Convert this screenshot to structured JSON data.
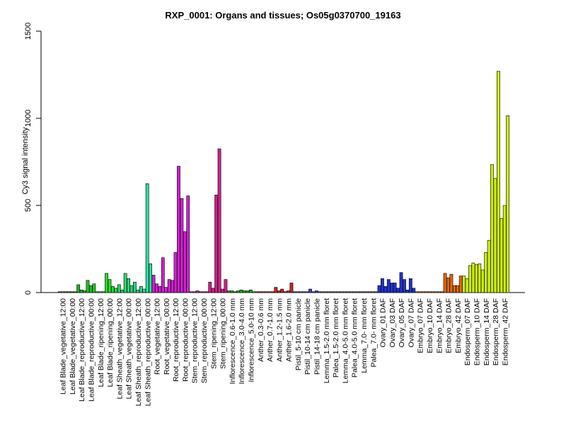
{
  "chart_data": {
    "type": "bar",
    "title": "RXP_0001: Organs and tissues; Os05g0370700_19163",
    "xlabel": "",
    "ylabel": "Cy3 signal intensity",
    "ylim": [
      0,
      1500
    ],
    "yticks": [
      "0",
      "500",
      "1000",
      "1500"
    ],
    "grid": false,
    "groups": [
      {
        "label": "Leaf Blade_vegetative_12:00",
        "color": "#1a8a1a",
        "values": [
          5,
          5,
          5
        ]
      },
      {
        "label": "Leaf Blade_vegetative_00:00",
        "color": "#1a8a1a",
        "values": [
          5,
          5,
          5
        ]
      },
      {
        "label": "Leaf Blade_reproductive_12:00",
        "color": "#22b022",
        "values": [
          45,
          15,
          10
        ]
      },
      {
        "label": "Leaf Blade_reproductive_00:00",
        "color": "#22c022",
        "values": [
          70,
          40,
          50
        ]
      },
      {
        "label": "Leaf Blade_ripening_12:00",
        "color": "#28d028",
        "values": [
          5,
          5,
          5
        ]
      },
      {
        "label": "Leaf Blade_ripening_00:00",
        "color": "#2ed62e",
        "values": [
          110,
          75,
          35
        ]
      },
      {
        "label": "Leaf Sheath_vegetative_12:00",
        "color": "#30d060",
        "values": [
          25,
          45,
          15
        ]
      },
      {
        "label": "Leaf Sheath_vegetative_00:00",
        "color": "#30d070",
        "values": [
          110,
          80,
          40
        ]
      },
      {
        "label": "Leaf Sheath_reproductive_12:00",
        "color": "#30d088",
        "values": [
          60,
          15,
          35
        ]
      },
      {
        "label": "Leaf Sheath_reproductive_00:00",
        "color": "#30d8a0",
        "values": [
          20,
          625,
          165
        ]
      },
      {
        "label": "Root_vegetative_12:00",
        "color": "#cc22cc",
        "values": [
          100,
          50,
          35
        ]
      },
      {
        "label": "Root_vegetative_00:00",
        "color": "#cc22cc",
        "values": [
          200,
          30,
          75
        ]
      },
      {
        "label": "Root_reproductive_12:00",
        "color": "#cc22cc",
        "values": [
          70,
          230,
          725
        ]
      },
      {
        "label": "Root_reproductive_00:00",
        "color": "#cc22cc",
        "values": [
          540,
          350,
          555
        ]
      },
      {
        "label": "Stem_reproductive_12:00",
        "color": "#cc2288",
        "values": [
          5,
          5,
          10
        ]
      },
      {
        "label": "Stem_reproductive_00:00",
        "color": "#cc2288",
        "values": [
          5,
          5,
          5
        ]
      },
      {
        "label": "Stem_ripening_12:00",
        "color": "#cc2288",
        "values": [
          60,
          25,
          560
        ]
      },
      {
        "label": "Stem_ripening_00:00",
        "color": "#cc2288",
        "values": [
          825,
          20,
          75
        ]
      },
      {
        "label": "Inflorescence_0.6-1.0 mm",
        "color": "#22aa22",
        "values": [
          10,
          10,
          5
        ]
      },
      {
        "label": "Inflorescence_3.0-4.0 mm",
        "color": "#22aa22",
        "values": [
          10,
          15,
          10
        ]
      },
      {
        "label": "Inflorescence_5.0-10 mm",
        "color": "#22aa22",
        "values": [
          10,
          15,
          5
        ]
      },
      {
        "label": "Anther_0.3-0.6 mm",
        "color": "#cc2222",
        "values": [
          5,
          5,
          5
        ]
      },
      {
        "label": "Anther_0.7-1.0 mm",
        "color": "#cc2222",
        "values": [
          5,
          5,
          5
        ]
      },
      {
        "label": "Anther_1.2-1.5 mm",
        "color": "#cc2222",
        "values": [
          30,
          10,
          20
        ]
      },
      {
        "label": "Anther_1.6-2.0 mm",
        "color": "#cc2222",
        "values": [
          5,
          10,
          55
        ]
      },
      {
        "label": "Pistil_5-10 cm panicle",
        "color": "#4444cc",
        "values": [
          5,
          5,
          5
        ]
      },
      {
        "label": "Pistil_10-14 cm panicle",
        "color": "#4444cc",
        "values": [
          5,
          5,
          20
        ]
      },
      {
        "label": "Pistil_14-18 cm panicle",
        "color": "#4444cc",
        "values": [
          5,
          10,
          5
        ]
      },
      {
        "label": "Lemma_1.5-2.0 mm floret",
        "color": "#666666",
        "values": [
          5,
          5,
          5
        ]
      },
      {
        "label": "Palea_1.5-2.0 mm floret",
        "color": "#666666",
        "values": [
          5,
          5,
          5
        ]
      },
      {
        "label": "Lemma_4.0-5.0 mm floret",
        "color": "#666666",
        "values": [
          5,
          5,
          5
        ]
      },
      {
        "label": "Palea_4.0-5.0 mm floret",
        "color": "#666666",
        "values": [
          5,
          5,
          5
        ]
      },
      {
        "label": "Lemma_7.0- mm floret",
        "color": "#666666",
        "values": [
          5,
          5,
          5
        ]
      },
      {
        "label": "Palea_7.0- mm floret",
        "color": "#666666",
        "values": [
          5,
          5,
          5
        ]
      },
      {
        "label": "Ovary_01 DAF",
        "color": "#2233cc",
        "values": [
          40,
          80,
          35
        ]
      },
      {
        "label": "Ovary_03 DAF",
        "color": "#2233cc",
        "values": [
          75,
          55,
          55
        ]
      },
      {
        "label": "Ovary_05 DAF",
        "color": "#2233cc",
        "values": [
          25,
          115,
          75
        ]
      },
      {
        "label": "Ovary_07 DAF",
        "color": "#2233cc",
        "values": [
          15,
          80,
          25
        ]
      },
      {
        "label": "Embryo_07 DAF",
        "color": "#dd6611",
        "values": [
          5,
          5,
          5
        ]
      },
      {
        "label": "Embryo_10 DAF",
        "color": "#dd6611",
        "values": [
          5,
          5,
          5
        ]
      },
      {
        "label": "Embryo_14 DAF",
        "color": "#dd6611",
        "values": [
          5,
          5,
          5
        ]
      },
      {
        "label": "Embryo_28 DAF",
        "color": "#dd6611",
        "values": [
          110,
          85,
          105
        ]
      },
      {
        "label": "Embryo_42 DAF",
        "color": "#dd6611",
        "values": [
          40,
          40,
          95
        ]
      },
      {
        "label": "Endosperm_07 DAF",
        "color": "#ccee11",
        "values": [
          95,
          80,
          155
        ]
      },
      {
        "label": "Endosperm_10 DAF",
        "color": "#ccee11",
        "values": [
          170,
          160,
          165
        ]
      },
      {
        "label": "Endosperm_14 DAF",
        "color": "#ccee11",
        "values": [
          130,
          230,
          300
        ]
      },
      {
        "label": "Endosperm_28 DAF",
        "color": "#ccee11",
        "values": [
          735,
          655,
          1270
        ]
      },
      {
        "label": "Endosperm_42 DAF",
        "color": "#ccee11",
        "values": [
          425,
          500,
          1015
        ]
      }
    ]
  }
}
